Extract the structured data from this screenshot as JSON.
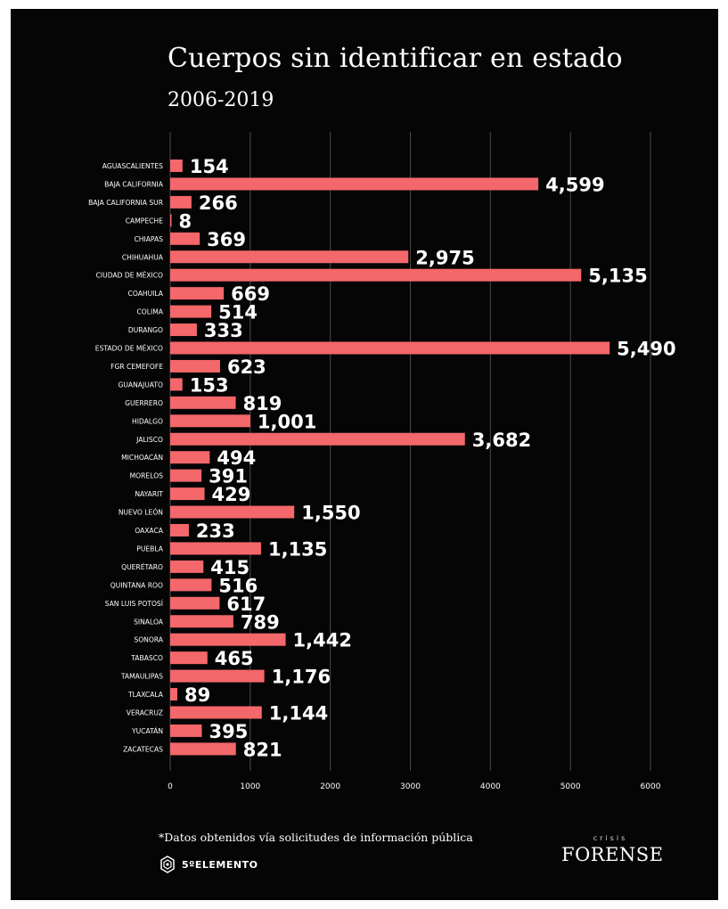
{
  "chart_data": {
    "type": "bar",
    "orientation": "horizontal",
    "title": "Cuerpos sin identificar en estado",
    "subtitle": "2006-2019",
    "categories": [
      "AGUASCALIENTES",
      "BAJA CALIFORNIA",
      "BAJA CALIFORNIA SUR",
      "CAMPECHE",
      "CHIAPAS",
      "CHIHUAHUA",
      "CIUDAD DE MÉXICO",
      "COAHUILA",
      "COLIMA",
      "DURANGO",
      "ESTADO DE MÉXICO",
      "FGR CEMEFOFE",
      "GUANAJUATO",
      "GUERRERO",
      "HIDALGO",
      "JALISCO",
      "MICHOACÁN",
      "MORELOS",
      "NAYARIT",
      "NUEVO LEÓN",
      "OAXACA",
      "PUEBLA",
      "QUERÉTARO",
      "QUINTANA ROO",
      "SAN LUIS POTOSÍ",
      "SINALOA",
      "SONORA",
      "TABASCO",
      "TAMAULIPAS",
      "TLAXCALA",
      "VERACRUZ",
      "YUCATÁN",
      "ZACATECAS"
    ],
    "values": [
      154,
      4599,
      266,
      8,
      369,
      2975,
      5135,
      669,
      514,
      333,
      5490,
      623,
      153,
      819,
      1001,
      3682,
      494,
      391,
      429,
      1550,
      233,
      1135,
      415,
      516,
      617,
      789,
      1442,
      465,
      1176,
      89,
      1144,
      395,
      821
    ],
    "value_labels": [
      "154",
      "4,599",
      "266",
      "8",
      "369",
      "2,975",
      "5,135",
      "669",
      "514",
      "333",
      "5,490",
      "623",
      "153",
      "819",
      "1,001",
      "3,682",
      "494",
      "391",
      "429",
      "1,550",
      "233",
      "1,135",
      "415",
      "516",
      "617",
      "789",
      "1,442",
      "465",
      "1,176",
      "89",
      "1,144",
      "395",
      "821"
    ],
    "xlim": [
      0,
      6000
    ],
    "xticks": [
      "0",
      "1000",
      "2000",
      "3000",
      "4000",
      "5000",
      "6000"
    ],
    "grid": true,
    "bar_color": "#f4676b",
    "background_color": "#050505",
    "text_color": "#ffffff",
    "grid_color": "#4a4a4a"
  },
  "footer": {
    "note": "*Datos obtenidos vía solicitudes de información pública",
    "left_brand": "5ºELEMENTO",
    "right_brand_small": "crisis",
    "right_brand_big": "FORENSE"
  }
}
